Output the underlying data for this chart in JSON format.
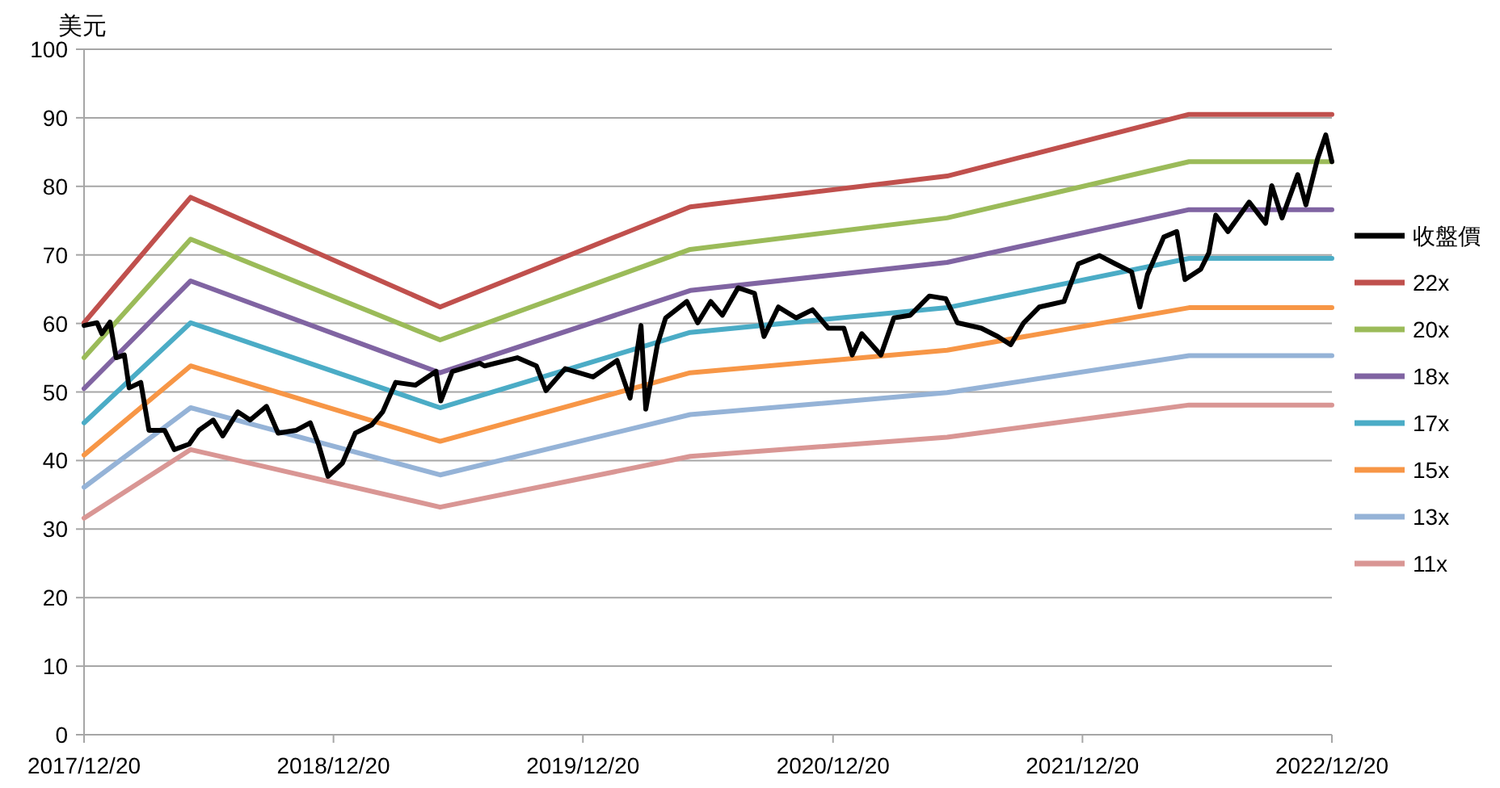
{
  "chart_data": {
    "type": "line",
    "ylabel": "美元",
    "ylim": [
      0,
      100
    ],
    "yticks": [
      0,
      10,
      20,
      30,
      40,
      50,
      60,
      70,
      80,
      90,
      100
    ],
    "xlim": [
      "2017-12-20",
      "2022-12-20"
    ],
    "xticks": [
      {
        "value": "2017-12-20",
        "label": "2017/12/20"
      },
      {
        "value": "2018-12-20",
        "label": "2018/12/20"
      },
      {
        "value": "2019-12-20",
        "label": "2019/12/20"
      },
      {
        "value": "2020-12-20",
        "label": "2020/12/20"
      },
      {
        "value": "2021-12-20",
        "label": "2021/12/20"
      },
      {
        "value": "2022-12-20",
        "label": "2022/12/20"
      }
    ],
    "grid": "y",
    "legend": "right",
    "line_style": "solid",
    "x": [
      "2017-12-20",
      "2018-05-25",
      "2019-05-25",
      "2020-05-25",
      "2021-06-05",
      "2022-05-25",
      "2022-12-20"
    ],
    "series": [
      {
        "name": "收盤價",
        "color": "#000000",
        "x": [
          "2017-12-20",
          "2018-01-08",
          "2018-01-15",
          "2018-01-27",
          "2018-02-05",
          "2018-02-17",
          "2018-02-24",
          "2018-03-13",
          "2018-03-25",
          "2018-04-17",
          "2018-05-01",
          "2018-05-23",
          "2018-06-06",
          "2018-06-27",
          "2018-07-11",
          "2018-08-02",
          "2018-08-20",
          "2018-09-13",
          "2018-09-30",
          "2018-10-26",
          "2018-11-16",
          "2018-11-28",
          "2018-12-12",
          "2019-01-02",
          "2019-01-21",
          "2019-02-14",
          "2019-03-02",
          "2019-03-21",
          "2019-04-19",
          "2019-05-19",
          "2019-05-26",
          "2019-06-12",
          "2019-07-22",
          "2019-07-29",
          "2019-09-15",
          "2019-10-13",
          "2019-10-27",
          "2019-11-24",
          "2020-01-04",
          "2020-02-08",
          "2020-02-27",
          "2020-03-14",
          "2020-03-21",
          "2020-04-07",
          "2020-04-19",
          "2020-05-20",
          "2020-06-05",
          "2020-06-24",
          "2020-07-11",
          "2020-08-03",
          "2020-08-27",
          "2020-09-10",
          "2020-10-01",
          "2020-10-27",
          "2020-11-20",
          "2020-12-13",
          "2021-01-05",
          "2021-01-17",
          "2021-01-31",
          "2021-02-28",
          "2021-03-19",
          "2021-04-12",
          "2021-05-10",
          "2021-06-03",
          "2021-06-20",
          "2021-07-25",
          "2021-08-18",
          "2021-09-06",
          "2021-09-25",
          "2021-10-18",
          "2021-11-23",
          "2021-12-14",
          "2022-01-14",
          "2022-02-06",
          "2022-03-02",
          "2022-03-14",
          "2022-03-25",
          "2022-04-18",
          "2022-05-07",
          "2022-05-19",
          "2022-06-11",
          "2022-06-23",
          "2022-07-03",
          "2022-07-21",
          "2022-08-21",
          "2022-09-14",
          "2022-09-23",
          "2022-10-08",
          "2022-10-31",
          "2022-11-12",
          "2022-11-29",
          "2022-12-11",
          "2022-12-20"
        ],
        "values": [
          59.7,
          60.1,
          58.5,
          60.2,
          55.0,
          55.4,
          50.6,
          51.4,
          44.4,
          44.4,
          41.6,
          42.4,
          44.4,
          45.9,
          43.6,
          47.1,
          45.9,
          47.9,
          44.0,
          44.4,
          45.5,
          42.4,
          37.7,
          39.6,
          44.0,
          45.2,
          47.1,
          51.4,
          51.0,
          53.0,
          48.7,
          53.0,
          54.2,
          53.8,
          55.0,
          53.8,
          50.2,
          53.4,
          52.2,
          54.6,
          49.1,
          59.7,
          47.5,
          56.9,
          60.8,
          63.2,
          60.1,
          63.2,
          61.2,
          65.2,
          64.4,
          58.1,
          62.4,
          60.8,
          62.0,
          59.3,
          59.3,
          55.4,
          58.5,
          55.4,
          60.8,
          61.2,
          64.0,
          63.6,
          60.1,
          59.3,
          58.1,
          56.9,
          60.1,
          62.4,
          63.2,
          68.7,
          69.9,
          68.7,
          67.5,
          62.4,
          67.1,
          72.6,
          73.4,
          66.4,
          67.9,
          70.3,
          75.8,
          73.4,
          77.7,
          74.6,
          80.1,
          75.4,
          81.7,
          77.3,
          84.0,
          87.5,
          83.6
        ]
      },
      {
        "name": "22x",
        "color": "#c0504d",
        "values": [
          60.1,
          78.4,
          62.4,
          77.0,
          81.5,
          90.5,
          90.5
        ]
      },
      {
        "name": "20x",
        "color": "#9bbb59",
        "values": [
          55.0,
          72.3,
          57.6,
          70.8,
          75.4,
          83.6,
          83.6
        ]
      },
      {
        "name": "18x",
        "color": "#8064a2",
        "values": [
          50.5,
          66.2,
          52.8,
          64.8,
          68.9,
          76.6,
          76.6
        ]
      },
      {
        "name": "17x",
        "color": "#4bacc6",
        "values": [
          45.5,
          60.1,
          47.7,
          58.7,
          62.3,
          69.5,
          69.5
        ]
      },
      {
        "name": "15x",
        "color": "#f79646",
        "values": [
          40.8,
          53.8,
          42.8,
          52.8,
          56.1,
          62.3,
          62.3
        ]
      },
      {
        "name": "13x",
        "color": "#95b3d7",
        "values": [
          36.1,
          47.7,
          37.9,
          46.7,
          49.9,
          55.3,
          55.3
        ]
      },
      {
        "name": "11x",
        "color": "#d99694",
        "values": [
          31.6,
          41.6,
          33.2,
          40.6,
          43.4,
          48.1,
          48.1
        ]
      }
    ]
  }
}
